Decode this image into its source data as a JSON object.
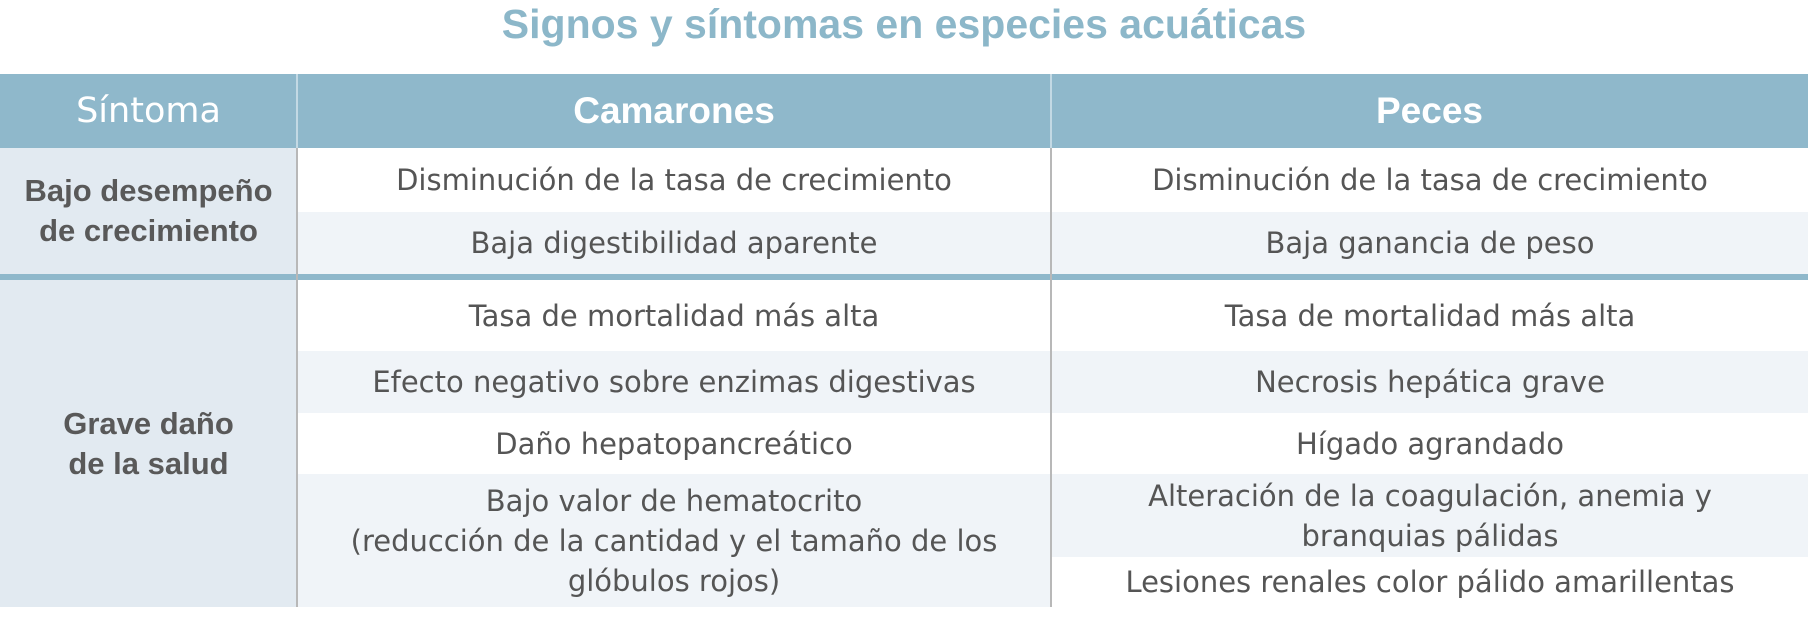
{
  "title": "Signos y síntomas en especies acuáticas",
  "headers": {
    "symptom": "Síntoma",
    "shrimp": "Camarones",
    "fish": "Peces"
  },
  "growth": {
    "label_line1": "Bajo desempeño",
    "label_line2": "de crecimiento",
    "shrimp": [
      "Disminución de la tasa de crecimiento",
      "Baja digestibilidad aparente"
    ],
    "fish": [
      "Disminución de la tasa de crecimiento",
      "Baja ganancia de peso"
    ]
  },
  "health": {
    "label_line1": "Grave daño",
    "label_line2": "de la salud",
    "shrimp": [
      "Tasa de mortalidad más alta",
      "Efecto negativo sobre enzimas digestivas",
      "Daño hepatopancreático",
      [
        "Bajo valor de hematocrito",
        "(reducción de la cantidad y el tamaño de los",
        "glóbulos rojos)"
      ]
    ],
    "fish": [
      "Tasa de mortalidad más alta",
      "Necrosis hepática grave",
      "Hígado agrandado",
      [
        "Alteración de la coagulación, anemia y",
        "branquias pálidas"
      ],
      "Lesiones renales color pálido amarillentas"
    ]
  }
}
